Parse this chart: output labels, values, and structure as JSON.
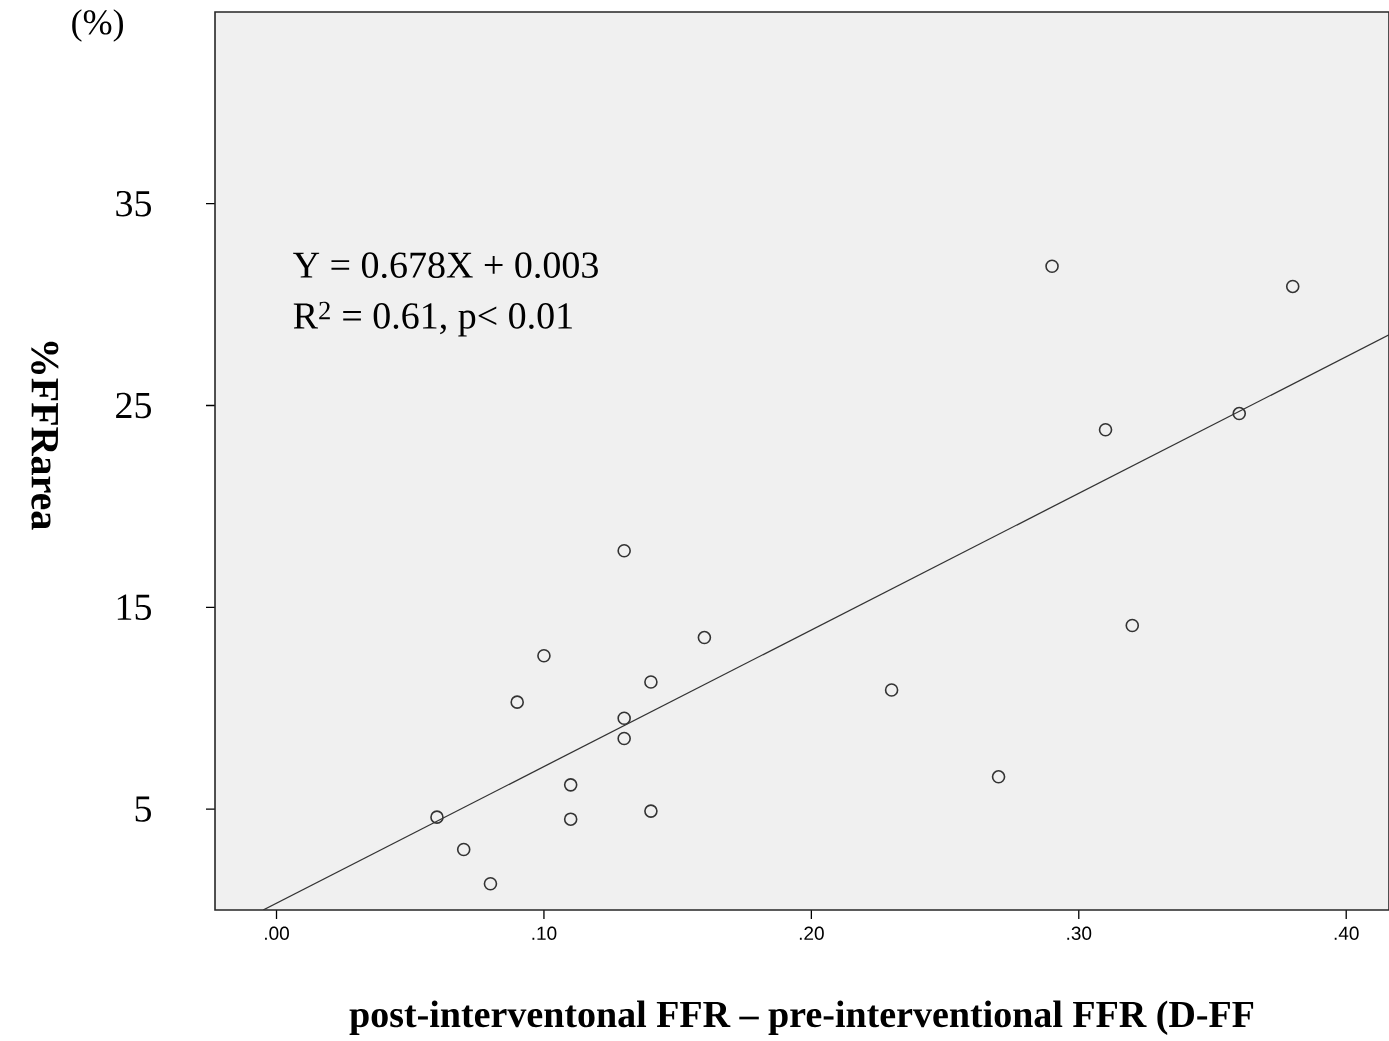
{
  "chart_data": {
    "type": "scatter",
    "xlabel": "post-interventonal FFR – pre-interventional FFR (D-FF",
    "ylabel": "%FFRarea",
    "annotations": [
      "(%)",
      "Y = 0.678X + 0.003",
      "R$^{2}$ = 0.61, p< 0.01"
    ],
    "xlim": [
      -0.023,
      0.416
    ],
    "ylim": [
      0,
      44.5
    ],
    "xticks": [
      {
        "value": 0,
        "label": ".00"
      },
      {
        "value": 0.1,
        "label": ".10"
      },
      {
        "value": 0.2,
        "label": ".20"
      },
      {
        "value": 0.3,
        "label": ".30"
      },
      {
        "value": 0.4,
        "label": ".40"
      }
    ],
    "yticks": [
      5,
      15,
      25,
      35
    ],
    "series": [
      {
        "type": "line",
        "color": "#333333",
        "x": [
          -0.005,
          0.416
        ],
        "values": [
          0.0,
          28.5
        ]
      },
      {
        "type": "scatter",
        "marker": "circle",
        "color": "#333333",
        "x": [
          0.06,
          0.07,
          0.08,
          0.09,
          0.1,
          0.11,
          0.11,
          0.13,
          0.13,
          0.13,
          0.14,
          0.14,
          0.16,
          0.23,
          0.27,
          0.29,
          0.31,
          0.32,
          0.36,
          0.38
        ],
        "values": [
          4.6,
          3.0,
          1.3,
          10.3,
          12.6,
          6.2,
          4.5,
          17.8,
          9.5,
          8.5,
          11.3,
          4.9,
          13.5,
          10.9,
          6.6,
          31.9,
          23.8,
          14.1,
          24.6,
          30.9
        ]
      }
    ]
  }
}
